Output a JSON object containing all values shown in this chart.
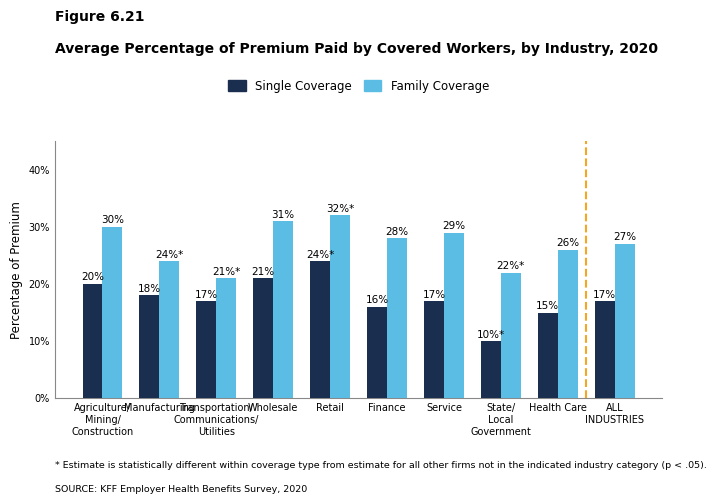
{
  "figure_label": "Figure 6.21",
  "title": "Average Percentage of Premium Paid by Covered Workers, by Industry, 2020",
  "categories": [
    "Agriculture/\nMining/\nConstruction",
    "Manufacturing",
    "Transportation/\nCommunications/\nUtilities",
    "Wholesale",
    "Retail",
    "Finance",
    "Service",
    "State/\nLocal\nGovernment",
    "Health Care",
    "ALL\nINDUSTRIES"
  ],
  "single_values": [
    20,
    18,
    17,
    21,
    24,
    16,
    17,
    10,
    15,
    17
  ],
  "family_values": [
    30,
    24,
    21,
    31,
    32,
    28,
    29,
    22,
    26,
    27
  ],
  "single_labels": [
    "20%",
    "18%",
    "17%",
    "21%",
    "24%*",
    "16%",
    "17%",
    "10%*",
    "15%",
    "17%"
  ],
  "family_labels": [
    "30%",
    "24%*",
    "21%*",
    "31%",
    "32%*",
    "28%",
    "29%",
    "22%*",
    "26%",
    "27%"
  ],
  "single_color": "#1a2e50",
  "family_color": "#5bbde4",
  "dashed_line_color": "#f5a623",
  "ylabel": "Percentage of Premium",
  "ylim": [
    0,
    45
  ],
  "yticks": [
    0,
    10,
    20,
    30,
    40
  ],
  "ytick_labels": [
    "0%",
    "10%",
    "20%",
    "30%",
    "40%"
  ],
  "legend_single": "Single Coverage",
  "legend_family": "Family Coverage",
  "footnote": "* Estimate is statistically different within coverage type from estimate for all other firms not in the indicated industry category (p < .05).",
  "source": "SOURCE: KFF Employer Health Benefits Survey, 2020",
  "bar_width": 0.35,
  "background_color": "#ffffff",
  "label_fontsize": 7.5,
  "tick_fontsize": 7,
  "axis_label_fontsize": 8.5,
  "title_fontsize": 10,
  "figure_label_fontsize": 10
}
